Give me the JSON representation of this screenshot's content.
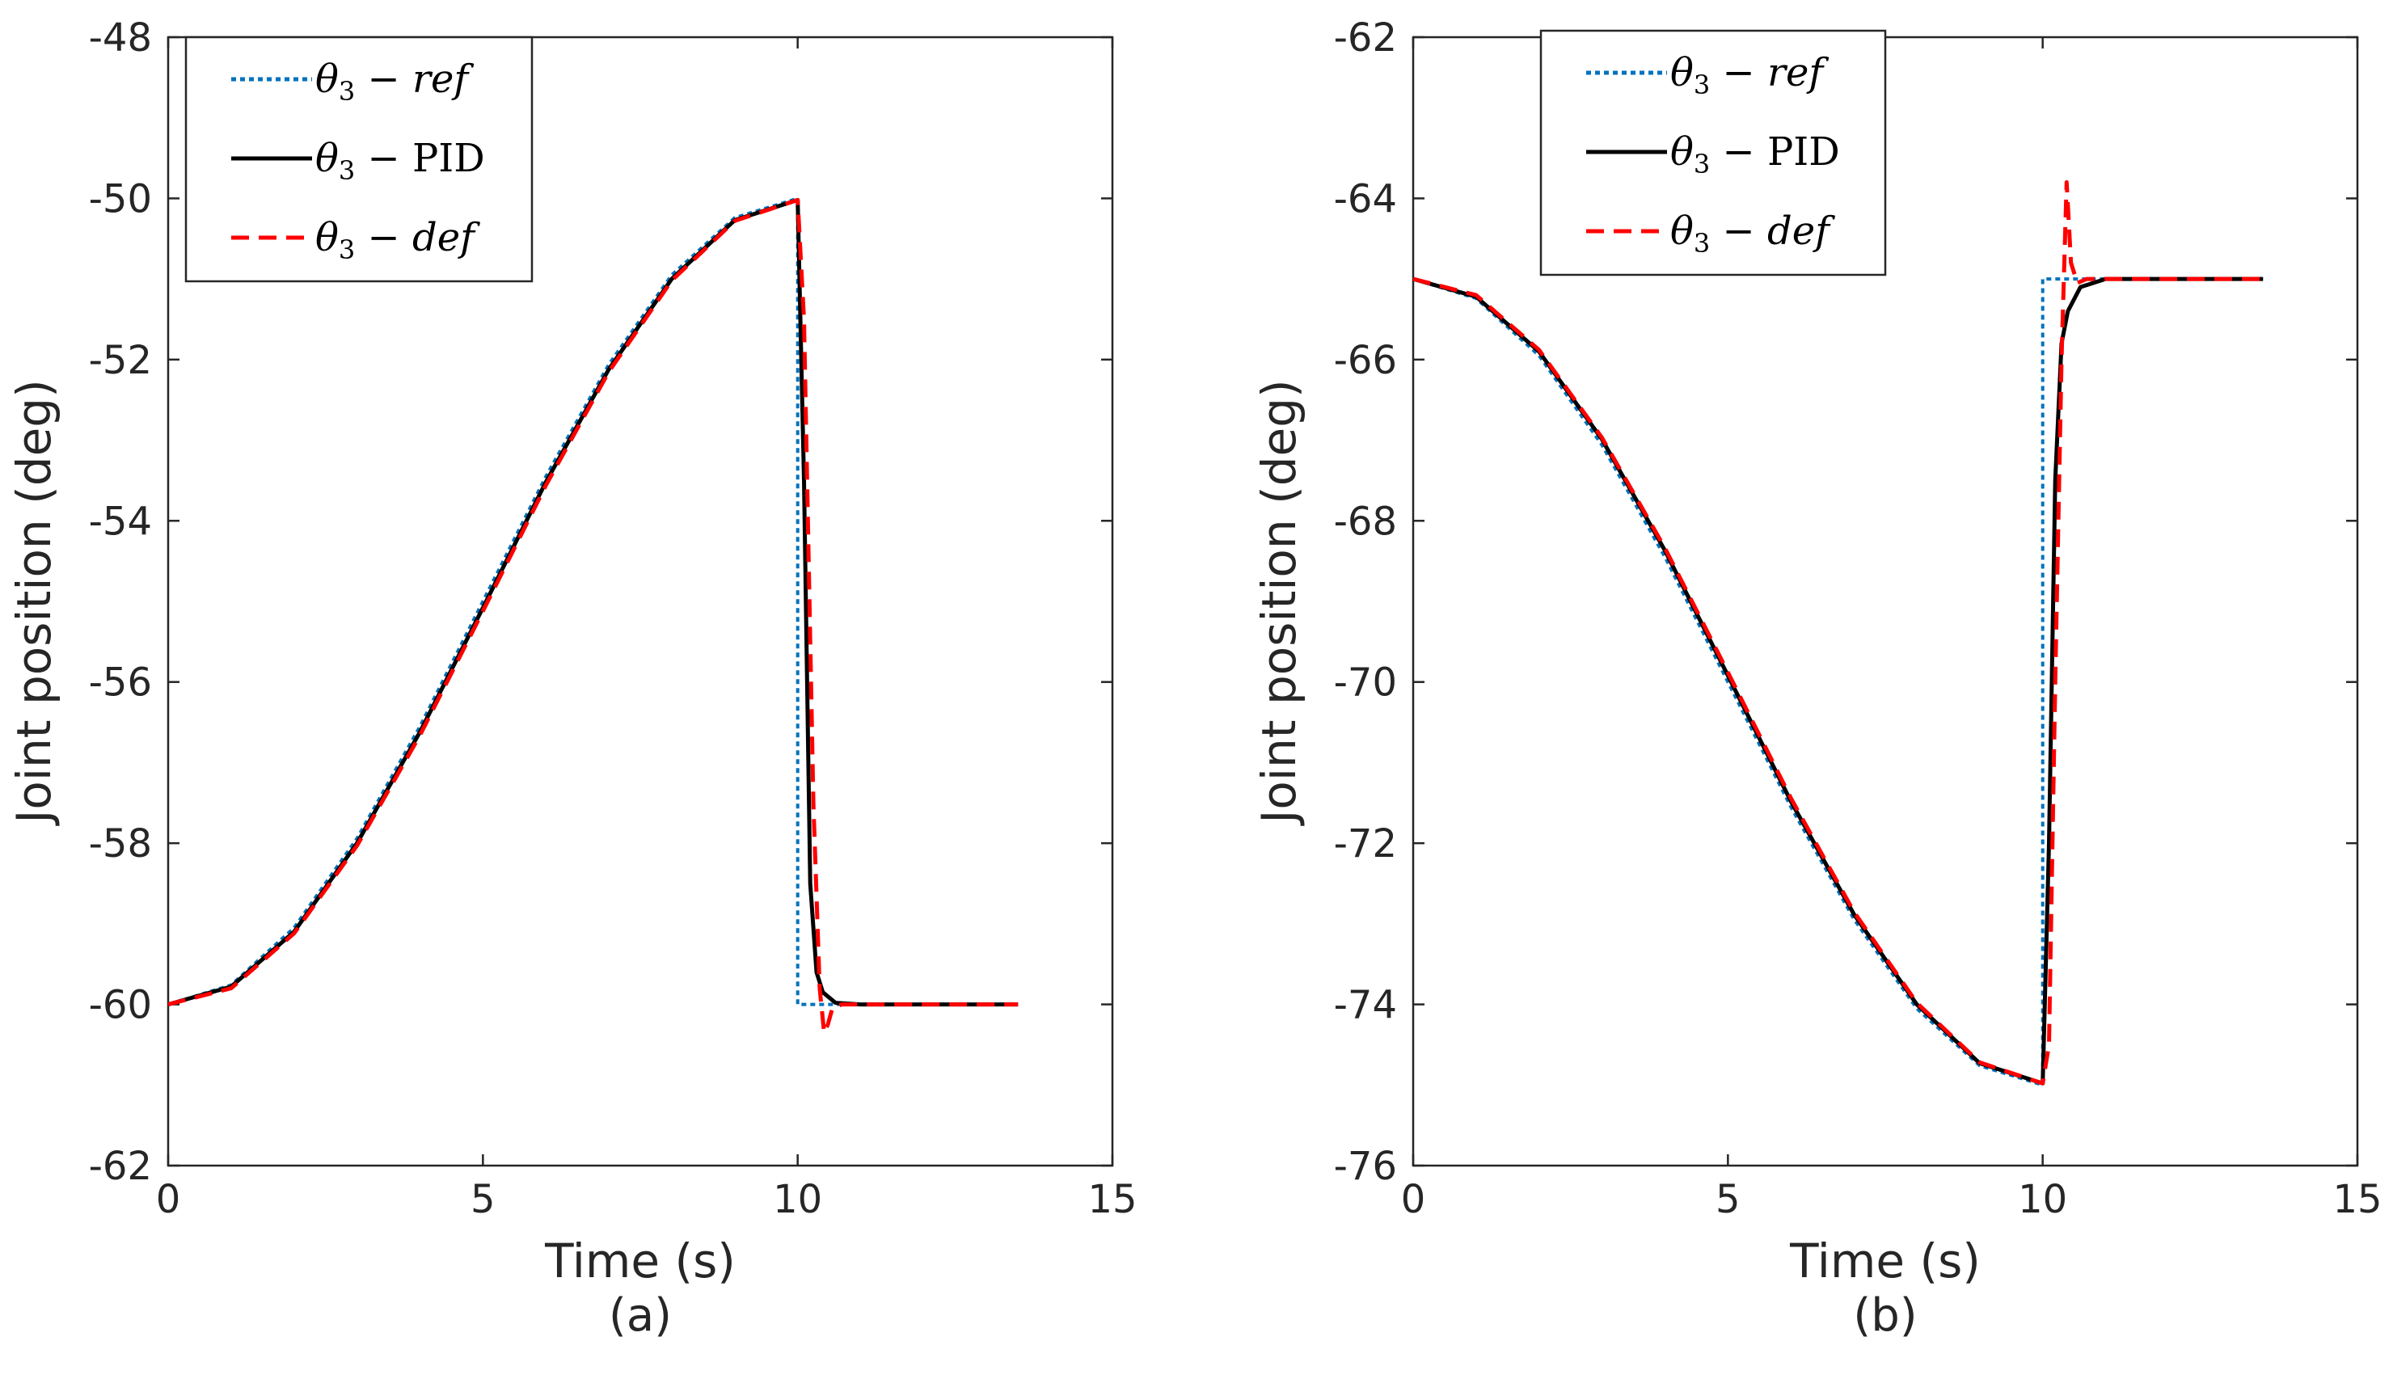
{
  "chart_data": [
    {
      "type": "line",
      "caption": "(a)",
      "xlabel": "Time (s)",
      "ylabel": "Joint position (deg)",
      "xlim": [
        0,
        15
      ],
      "ylim": [
        -62,
        -48
      ],
      "xticks": [
        "0",
        "5",
        "10",
        "15"
      ],
      "yticks": [
        "-48",
        "-50",
        "-52",
        "-54",
        "-56",
        "-58",
        "-60",
        "-62"
      ],
      "grid": false,
      "legend_position": "top-left",
      "legend": [
        {
          "prefix": "θ",
          "sub": "3",
          "mid": " − ",
          "suffix": "ref",
          "upright": false
        },
        {
          "prefix": "θ",
          "sub": "3",
          "mid": " − ",
          "suffix": "PID",
          "upright": true
        },
        {
          "prefix": "θ",
          "sub": "3",
          "mid": " − ",
          "suffix": "def",
          "upright": false
        }
      ],
      "series": [
        {
          "name": "θ3 − ref",
          "color": "#0072BD",
          "style": "dotted",
          "x": [
            0,
            1,
            2,
            3,
            4,
            5,
            6,
            7,
            8,
            9,
            10,
            10.0,
            10.5,
            11,
            12,
            13.5
          ],
          "y": [
            -60,
            -59.76,
            -59.05,
            -57.94,
            -56.55,
            -55.0,
            -53.45,
            -52.06,
            -50.95,
            -50.24,
            -50,
            -60,
            -60,
            -60,
            -60,
            -60
          ]
        },
        {
          "name": "θ3 − PID",
          "color": "#000000",
          "style": "solid",
          "x": [
            0,
            1,
            2,
            3,
            4,
            5,
            6,
            7,
            8,
            9,
            10,
            10.1,
            10.2,
            10.3,
            10.4,
            10.6,
            11,
            12,
            13.5
          ],
          "y": [
            -60,
            -59.78,
            -59.1,
            -58.0,
            -56.62,
            -55.08,
            -53.52,
            -52.12,
            -51.0,
            -50.27,
            -50.02,
            -53.5,
            -58.5,
            -59.6,
            -59.85,
            -59.98,
            -60,
            -60,
            -60
          ]
        },
        {
          "name": "θ3 − def",
          "color": "#FF0000",
          "style": "dashed",
          "x": [
            0,
            1,
            2,
            3,
            4,
            5,
            6,
            7,
            8,
            9,
            10,
            10.1,
            10.25,
            10.35,
            10.42,
            10.48,
            10.55,
            10.7,
            11,
            12,
            13.5
          ],
          "y": [
            -60,
            -59.8,
            -59.12,
            -58.03,
            -56.66,
            -55.12,
            -53.56,
            -52.15,
            -51.02,
            -50.28,
            -50.02,
            -51.5,
            -57.5,
            -59.8,
            -60.35,
            -60.25,
            -60.05,
            -60,
            -60,
            -60,
            -60
          ]
        }
      ]
    },
    {
      "type": "line",
      "caption": "(b)",
      "xlabel": "Time (s)",
      "ylabel": "Joint position (deg)",
      "xlim": [
        0,
        15
      ],
      "ylim": [
        -76,
        -62
      ],
      "xticks": [
        "0",
        "5",
        "10",
        "15"
      ],
      "yticks": [
        "-62",
        "-64",
        "-66",
        "-68",
        "-70",
        "-72",
        "-74",
        "-76"
      ],
      "grid": false,
      "legend_position": "top-center",
      "legend": [
        {
          "prefix": "θ",
          "sub": "3",
          "mid": " − ",
          "suffix": "ref",
          "upright": false
        },
        {
          "prefix": "θ",
          "sub": "3",
          "mid": " − ",
          "suffix": "PID",
          "upright": true
        },
        {
          "prefix": "θ",
          "sub": "3",
          "mid": " − ",
          "suffix": "def",
          "upright": false
        }
      ],
      "series": [
        {
          "name": "θ3 − ref",
          "color": "#0072BD",
          "style": "dotted",
          "x": [
            0,
            1,
            2,
            3,
            4,
            5,
            6,
            7,
            8,
            9,
            10,
            10.0,
            10.5,
            11,
            12,
            13.5
          ],
          "y": [
            -65,
            -65.24,
            -65.95,
            -67.06,
            -68.45,
            -70.0,
            -71.55,
            -72.94,
            -74.05,
            -74.76,
            -75,
            -65,
            -65,
            -65,
            -65,
            -65
          ]
        },
        {
          "name": "θ3 − PID",
          "color": "#000000",
          "style": "solid",
          "x": [
            0,
            1,
            2,
            3,
            4,
            5,
            6,
            7,
            8,
            9,
            10,
            10.1,
            10.2,
            10.3,
            10.4,
            10.6,
            11,
            12,
            13.5
          ],
          "y": [
            -65,
            -65.22,
            -65.9,
            -66.99,
            -68.37,
            -69.92,
            -71.48,
            -72.88,
            -74.0,
            -74.73,
            -74.98,
            -72.0,
            -67.5,
            -65.8,
            -65.4,
            -65.1,
            -65,
            -65,
            -65
          ]
        },
        {
          "name": "θ3 − def",
          "color": "#FF0000",
          "style": "dashed",
          "x": [
            0,
            1,
            2,
            3,
            4,
            5,
            6,
            7,
            8,
            9,
            10,
            10.1,
            10.2,
            10.3,
            10.38,
            10.45,
            10.55,
            10.7,
            11,
            12,
            13.5
          ],
          "y": [
            -65,
            -65.2,
            -65.88,
            -66.97,
            -68.34,
            -69.88,
            -71.44,
            -72.85,
            -73.98,
            -74.72,
            -74.98,
            -74.5,
            -70.0,
            -66.0,
            -63.8,
            -64.8,
            -65.05,
            -65,
            -65,
            -65,
            -65
          ]
        }
      ]
    }
  ]
}
